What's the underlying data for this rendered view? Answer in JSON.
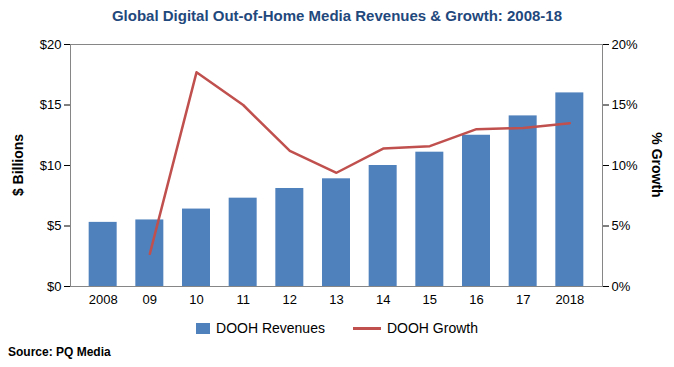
{
  "chart_data": {
    "type": "bar",
    "title": "Global Digital Out-of-Home Media Revenues & Growth: 2008-18",
    "caption": "Source: PQ Media",
    "ylabel": "$ Billions",
    "y2label": "% Growth",
    "categories": [
      "2008",
      "09",
      "10",
      "11",
      "12",
      "13",
      "14",
      "15",
      "16",
      "17",
      "2018"
    ],
    "series": [
      {
        "name": "DOOH Revenues",
        "type": "bar",
        "color": "#4f81bd",
        "values": [
          5.3,
          5.5,
          6.4,
          7.3,
          8.1,
          8.9,
          10.0,
          11.1,
          12.5,
          14.1,
          16.0
        ]
      },
      {
        "name": "DOOH Growth",
        "type": "line",
        "color": "#c0504d",
        "axis": "y2",
        "values": [
          null,
          2.7,
          17.7,
          15.0,
          11.2,
          9.4,
          11.4,
          11.6,
          13.0,
          13.1,
          13.5
        ]
      }
    ],
    "ylim": [
      0,
      20
    ],
    "yticks": [
      {
        "value": 0,
        "label": "$0"
      },
      {
        "value": 5,
        "label": "$5"
      },
      {
        "value": 10,
        "label": "$10"
      },
      {
        "value": 15,
        "label": "$15"
      },
      {
        "value": 20,
        "label": "$20"
      }
    ],
    "y2lim": [
      0,
      20
    ],
    "y2ticks": [
      {
        "value": 0,
        "label": "0%"
      },
      {
        "value": 5,
        "label": "5%"
      },
      {
        "value": 10,
        "label": "10%"
      },
      {
        "value": 15,
        "label": "15%"
      },
      {
        "value": 20,
        "label": "20%"
      }
    ],
    "legend": "bottom",
    "grid": false
  }
}
